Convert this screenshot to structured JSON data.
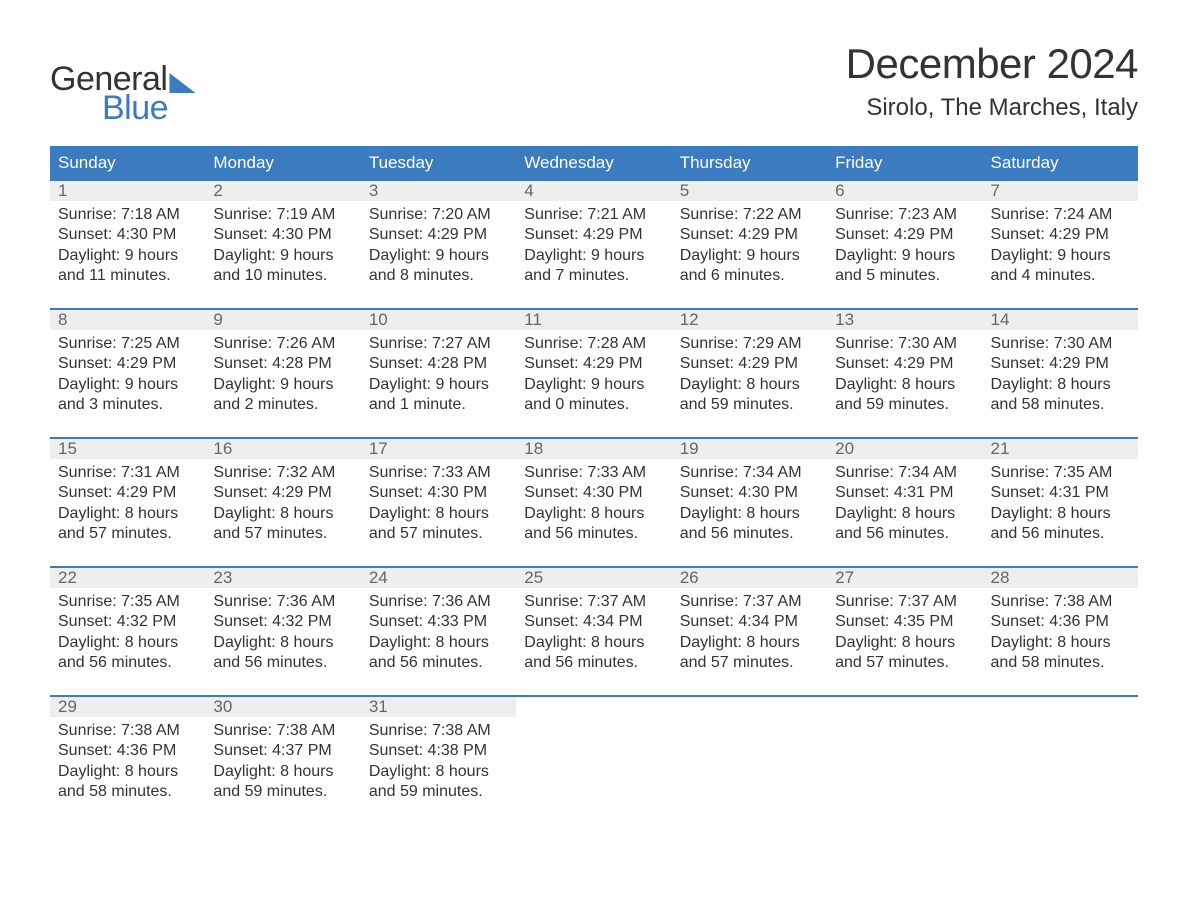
{
  "logo": {
    "word1": "General",
    "word2": "Blue"
  },
  "title": "December 2024",
  "location": "Sirolo, The Marches, Italy",
  "colors": {
    "brand": "#3b7bbf",
    "daynum_bg": "#eeeeee",
    "text": "#333333",
    "muted": "#666666",
    "bg": "#ffffff"
  },
  "weekdays": [
    "Sunday",
    "Monday",
    "Tuesday",
    "Wednesday",
    "Thursday",
    "Friday",
    "Saturday"
  ],
  "weeks": [
    [
      {
        "n": "1",
        "sr": "Sunrise: 7:18 AM",
        "ss": "Sunset: 4:30 PM",
        "d1": "Daylight: 9 hours",
        "d2": "and 11 minutes."
      },
      {
        "n": "2",
        "sr": "Sunrise: 7:19 AM",
        "ss": "Sunset: 4:30 PM",
        "d1": "Daylight: 9 hours",
        "d2": "and 10 minutes."
      },
      {
        "n": "3",
        "sr": "Sunrise: 7:20 AM",
        "ss": "Sunset: 4:29 PM",
        "d1": "Daylight: 9 hours",
        "d2": "and 8 minutes."
      },
      {
        "n": "4",
        "sr": "Sunrise: 7:21 AM",
        "ss": "Sunset: 4:29 PM",
        "d1": "Daylight: 9 hours",
        "d2": "and 7 minutes."
      },
      {
        "n": "5",
        "sr": "Sunrise: 7:22 AM",
        "ss": "Sunset: 4:29 PM",
        "d1": "Daylight: 9 hours",
        "d2": "and 6 minutes."
      },
      {
        "n": "6",
        "sr": "Sunrise: 7:23 AM",
        "ss": "Sunset: 4:29 PM",
        "d1": "Daylight: 9 hours",
        "d2": "and 5 minutes."
      },
      {
        "n": "7",
        "sr": "Sunrise: 7:24 AM",
        "ss": "Sunset: 4:29 PM",
        "d1": "Daylight: 9 hours",
        "d2": "and 4 minutes."
      }
    ],
    [
      {
        "n": "8",
        "sr": "Sunrise: 7:25 AM",
        "ss": "Sunset: 4:29 PM",
        "d1": "Daylight: 9 hours",
        "d2": "and 3 minutes."
      },
      {
        "n": "9",
        "sr": "Sunrise: 7:26 AM",
        "ss": "Sunset: 4:28 PM",
        "d1": "Daylight: 9 hours",
        "d2": "and 2 minutes."
      },
      {
        "n": "10",
        "sr": "Sunrise: 7:27 AM",
        "ss": "Sunset: 4:28 PM",
        "d1": "Daylight: 9 hours",
        "d2": "and 1 minute."
      },
      {
        "n": "11",
        "sr": "Sunrise: 7:28 AM",
        "ss": "Sunset: 4:29 PM",
        "d1": "Daylight: 9 hours",
        "d2": "and 0 minutes."
      },
      {
        "n": "12",
        "sr": "Sunrise: 7:29 AM",
        "ss": "Sunset: 4:29 PM",
        "d1": "Daylight: 8 hours",
        "d2": "and 59 minutes."
      },
      {
        "n": "13",
        "sr": "Sunrise: 7:30 AM",
        "ss": "Sunset: 4:29 PM",
        "d1": "Daylight: 8 hours",
        "d2": "and 59 minutes."
      },
      {
        "n": "14",
        "sr": "Sunrise: 7:30 AM",
        "ss": "Sunset: 4:29 PM",
        "d1": "Daylight: 8 hours",
        "d2": "and 58 minutes."
      }
    ],
    [
      {
        "n": "15",
        "sr": "Sunrise: 7:31 AM",
        "ss": "Sunset: 4:29 PM",
        "d1": "Daylight: 8 hours",
        "d2": "and 57 minutes."
      },
      {
        "n": "16",
        "sr": "Sunrise: 7:32 AM",
        "ss": "Sunset: 4:29 PM",
        "d1": "Daylight: 8 hours",
        "d2": "and 57 minutes."
      },
      {
        "n": "17",
        "sr": "Sunrise: 7:33 AM",
        "ss": "Sunset: 4:30 PM",
        "d1": "Daylight: 8 hours",
        "d2": "and 57 minutes."
      },
      {
        "n": "18",
        "sr": "Sunrise: 7:33 AM",
        "ss": "Sunset: 4:30 PM",
        "d1": "Daylight: 8 hours",
        "d2": "and 56 minutes."
      },
      {
        "n": "19",
        "sr": "Sunrise: 7:34 AM",
        "ss": "Sunset: 4:30 PM",
        "d1": "Daylight: 8 hours",
        "d2": "and 56 minutes."
      },
      {
        "n": "20",
        "sr": "Sunrise: 7:34 AM",
        "ss": "Sunset: 4:31 PM",
        "d1": "Daylight: 8 hours",
        "d2": "and 56 minutes."
      },
      {
        "n": "21",
        "sr": "Sunrise: 7:35 AM",
        "ss": "Sunset: 4:31 PM",
        "d1": "Daylight: 8 hours",
        "d2": "and 56 minutes."
      }
    ],
    [
      {
        "n": "22",
        "sr": "Sunrise: 7:35 AM",
        "ss": "Sunset: 4:32 PM",
        "d1": "Daylight: 8 hours",
        "d2": "and 56 minutes."
      },
      {
        "n": "23",
        "sr": "Sunrise: 7:36 AM",
        "ss": "Sunset: 4:32 PM",
        "d1": "Daylight: 8 hours",
        "d2": "and 56 minutes."
      },
      {
        "n": "24",
        "sr": "Sunrise: 7:36 AM",
        "ss": "Sunset: 4:33 PM",
        "d1": "Daylight: 8 hours",
        "d2": "and 56 minutes."
      },
      {
        "n": "25",
        "sr": "Sunrise: 7:37 AM",
        "ss": "Sunset: 4:34 PM",
        "d1": "Daylight: 8 hours",
        "d2": "and 56 minutes."
      },
      {
        "n": "26",
        "sr": "Sunrise: 7:37 AM",
        "ss": "Sunset: 4:34 PM",
        "d1": "Daylight: 8 hours",
        "d2": "and 57 minutes."
      },
      {
        "n": "27",
        "sr": "Sunrise: 7:37 AM",
        "ss": "Sunset: 4:35 PM",
        "d1": "Daylight: 8 hours",
        "d2": "and 57 minutes."
      },
      {
        "n": "28",
        "sr": "Sunrise: 7:38 AM",
        "ss": "Sunset: 4:36 PM",
        "d1": "Daylight: 8 hours",
        "d2": "and 58 minutes."
      }
    ],
    [
      {
        "n": "29",
        "sr": "Sunrise: 7:38 AM",
        "ss": "Sunset: 4:36 PM",
        "d1": "Daylight: 8 hours",
        "d2": "and 58 minutes."
      },
      {
        "n": "30",
        "sr": "Sunrise: 7:38 AM",
        "ss": "Sunset: 4:37 PM",
        "d1": "Daylight: 8 hours",
        "d2": "and 59 minutes."
      },
      {
        "n": "31",
        "sr": "Sunrise: 7:38 AM",
        "ss": "Sunset: 4:38 PM",
        "d1": "Daylight: 8 hours",
        "d2": "and 59 minutes."
      },
      null,
      null,
      null,
      null
    ]
  ]
}
